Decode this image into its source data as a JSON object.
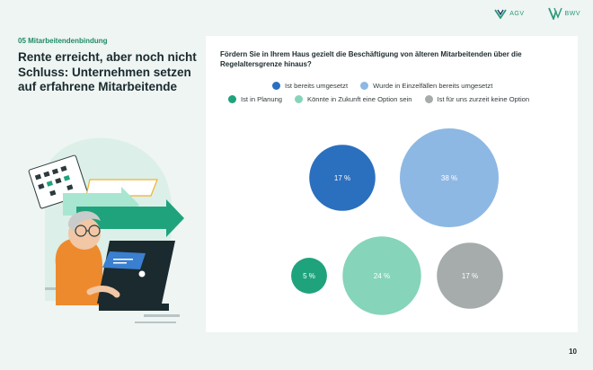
{
  "logos": {
    "agv": "AGV",
    "bwv": "BWV"
  },
  "section_tag": "05 Mitarbeitendenbindung",
  "headline": "Rente erreicht, aber noch nicht Schluss: Unternehmen setzen auf erfahrene Mitarbeitende",
  "page_number": "10",
  "colors": {
    "brand_green": "#1f8a66",
    "background": "#eef5f3"
  },
  "chart_data": {
    "type": "bubble",
    "title": "Fördern Sie in Ihrem Haus gezielt die Beschäftigung von älteren Mitarbeitenden über die Regelaltersgrenze hinaus?",
    "unit": "%",
    "categories": [
      "Ist bereits umgesetzt",
      "Wurde in Einzelfällen bereits umgesetzt",
      "Ist in Planung",
      "Könnte in Zukunft eine Option sein",
      "Ist für uns zurzeit keine Option"
    ],
    "values": [
      17,
      38,
      5,
      24,
      17
    ],
    "value_labels": [
      "17 %",
      "38 %",
      "5 %",
      "24 %",
      "17 %"
    ],
    "colors": [
      "#2b6fbf",
      "#8db8e3",
      "#1fa37c",
      "#86d4ba",
      "#a6abac"
    ],
    "legend_position": "top"
  }
}
